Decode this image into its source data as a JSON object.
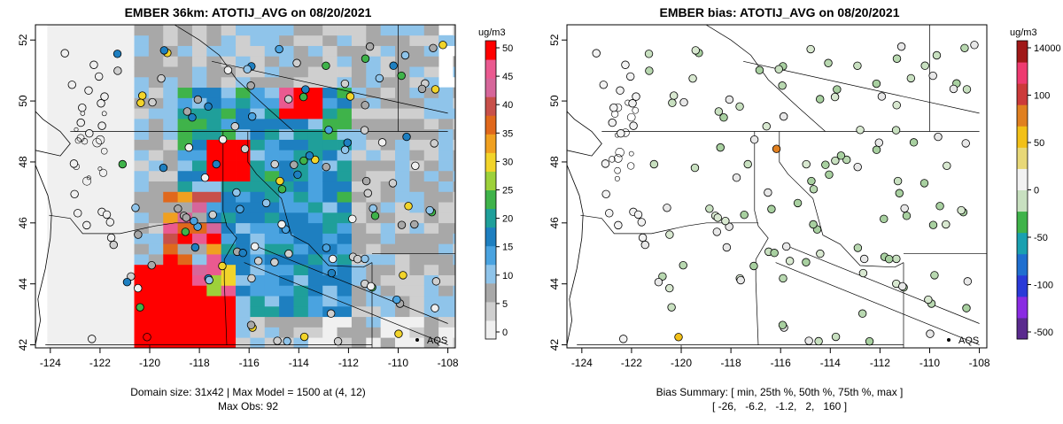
{
  "left_map": {
    "title": "EMBER 36km: ATOTIJ_AVG on 08/20/2021",
    "summary_line1": "Domain size: 31x42 | Max Model = 1500 at (4, 12)",
    "summary_line2": "Max Obs: 92",
    "colorbar_unit": "ug/m3",
    "colorbar_ticks": [
      "0",
      "5",
      "10",
      "15",
      "20",
      "25",
      "30",
      "35",
      "40",
      "45",
      "50"
    ],
    "station_label": "AQS"
  },
  "right_map": {
    "title": "EMBER bias: ATOTIJ_AVG on 08/20/2021",
    "summary_line1": "Bias Summary: [ min, 25th %, 50th %, 75th %, max ]",
    "summary_line2": "[ -26,   -6.2,   -1.2,   2,   160 ]",
    "colorbar_unit": "ug/m3",
    "colorbar_ticks": [
      "-500",
      "-100",
      "-50",
      "0",
      "50",
      "100",
      "14000"
    ],
    "station_label": "AQS"
  },
  "axes": {
    "x_ticks": [
      "-124",
      "-122",
      "-120",
      "-118",
      "-116",
      "-114",
      "-112",
      "-110",
      "-108"
    ],
    "y_ticks": [
      "42",
      "44",
      "46",
      "48",
      "50",
      "52"
    ]
  },
  "colors": {
    "model_scale": [
      "#f0f0f0",
      "#cfcfcf",
      "#a8a8a8",
      "#8fc4ea",
      "#4aa3e0",
      "#1e7fc0",
      "#1f9f9a",
      "#3fb34a",
      "#9dd13a",
      "#f2d42a",
      "#f0a020",
      "#e0681c",
      "#c8504a",
      "#d6669a",
      "#ea5a90",
      "#ff0000"
    ],
    "bias_scale": [
      "#5a2a8e",
      "#8a2be2",
      "#2a3ad8",
      "#1f6fd0",
      "#1aa0b0",
      "#3fb34a",
      "#c8e0c0",
      "#f2f2f2",
      "#e8d878",
      "#f2c018",
      "#e08020",
      "#cc3a3a",
      "#ee3a70",
      "#a01818"
    ]
  }
}
